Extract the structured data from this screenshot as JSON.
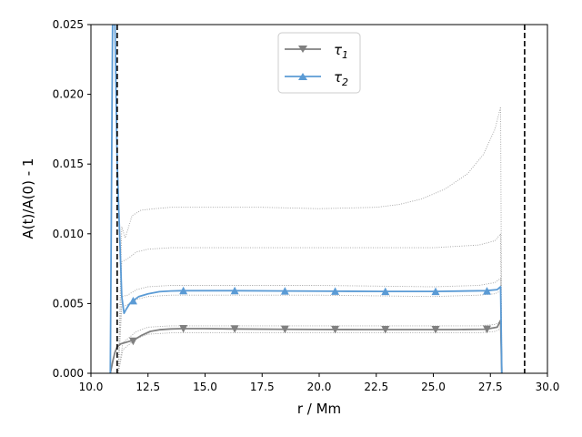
{
  "chart_data": {
    "type": "line",
    "xlabel": "r / Mm",
    "ylabel": "A(t)/A(0) - 1",
    "xlim": [
      10.0,
      30.0
    ],
    "ylim": [
      0.0,
      0.025
    ],
    "xticks": [
      "10.0",
      "12.5",
      "15.0",
      "17.5",
      "20.0",
      "22.5",
      "25.0",
      "27.5",
      "30.0"
    ],
    "yticks": [
      "0.000",
      "0.005",
      "0.010",
      "0.015",
      "0.020",
      "0.025"
    ],
    "grid": false,
    "legend_position": "top-center",
    "vertical_lines": [
      {
        "x": 11.15,
        "style": "dashed",
        "color": "#000000"
      },
      {
        "x": 29.0,
        "style": "dashed",
        "color": "#000000"
      }
    ],
    "series": [
      {
        "name": "τ1",
        "label_base": "τ",
        "label_sub": "1",
        "color": "#808080",
        "marker": "triangle-down",
        "x": [
          10.85,
          10.95,
          11.05,
          11.15,
          11.3,
          11.5,
          11.7,
          11.9,
          12.2,
          12.6,
          13.0,
          13.5,
          14.0,
          15.0,
          16.2,
          18.0,
          20.0,
          22.0,
          24.0,
          26.0,
          27.3,
          27.8,
          27.95,
          28.0
        ],
        "y": [
          0.0,
          0.0008,
          0.0015,
          0.0019,
          0.0021,
          0.0022,
          0.0023,
          0.0024,
          0.0027,
          0.003,
          0.00312,
          0.00318,
          0.0032,
          0.0032,
          0.00318,
          0.00316,
          0.00314,
          0.00313,
          0.00313,
          0.00313,
          0.00316,
          0.0033,
          0.0038,
          0.0
        ],
        "marker_x": [
          11.85,
          14.05,
          16.3,
          18.5,
          20.7,
          22.9,
          25.1,
          27.35
        ],
        "marker_y": [
          0.0023,
          0.0032,
          0.00318,
          0.00316,
          0.00314,
          0.00313,
          0.00313,
          0.00316
        ]
      },
      {
        "name": "τ2",
        "label_base": "τ",
        "label_sub": "2",
        "color": "#5b9bd5",
        "marker": "triangle-up",
        "x": [
          10.85,
          10.95,
          11.05,
          11.15,
          11.35,
          11.45,
          11.55,
          11.7,
          11.85,
          12.1,
          12.5,
          13.0,
          13.5,
          14.0,
          15.0,
          16.3,
          18.5,
          20.7,
          22.9,
          25.1,
          27.3,
          27.8,
          27.95,
          28.0
        ],
        "y": [
          0.0,
          0.025,
          0.025,
          0.015,
          0.0055,
          0.0043,
          0.0046,
          0.005,
          0.0052,
          0.0055,
          0.0057,
          0.00585,
          0.0059,
          0.00592,
          0.00592,
          0.00592,
          0.0059,
          0.00588,
          0.00587,
          0.00587,
          0.00592,
          0.006,
          0.0062,
          0.0
        ],
        "marker_x": [
          11.85,
          14.05,
          16.3,
          18.5,
          20.7,
          22.9,
          25.1,
          27.35
        ],
        "marker_y": [
          0.0052,
          0.00592,
          0.00592,
          0.0059,
          0.00588,
          0.00587,
          0.00587,
          0.0059
        ]
      }
    ],
    "reference_curves": [
      {
        "color": "#a0a0a0",
        "style": "dotted",
        "x": [
          11.2,
          11.35,
          11.5,
          11.8,
          12.2,
          12.8,
          13.5,
          15.0,
          17.5,
          20.0,
          22.5,
          23.5,
          24.5,
          25.5,
          26.5,
          27.2,
          27.7,
          27.95,
          28.0
        ],
        "y": [
          0.0,
          0.0105,
          0.0097,
          0.0113,
          0.0117,
          0.0118,
          0.0119,
          0.0119,
          0.0119,
          0.0118,
          0.0119,
          0.0121,
          0.0125,
          0.0132,
          0.0143,
          0.0157,
          0.0175,
          0.0191,
          0.0
        ]
      },
      {
        "color": "#a0a0a0",
        "style": "dotted",
        "x": [
          11.2,
          11.35,
          11.6,
          12.0,
          12.5,
          13.5,
          15.0,
          20.0,
          25.0,
          27.0,
          27.7,
          27.95,
          28.0
        ],
        "y": [
          0.0,
          0.008,
          0.0082,
          0.0087,
          0.0089,
          0.009,
          0.009,
          0.009,
          0.009,
          0.0092,
          0.0095,
          0.01,
          0.0
        ]
      },
      {
        "color": "#a0a0a0",
        "style": "dotted",
        "x": [
          11.2,
          11.35,
          11.6,
          12.0,
          12.5,
          13.5,
          15.0,
          20.0,
          25.0,
          27.0,
          27.7,
          27.95,
          28.0
        ],
        "y": [
          0.0,
          0.0055,
          0.0056,
          0.006,
          0.0062,
          0.0063,
          0.0063,
          0.0063,
          0.0062,
          0.0063,
          0.0065,
          0.0068,
          0.0
        ]
      },
      {
        "color": "#a0a0a0",
        "style": "dotted",
        "x": [
          11.2,
          11.35,
          11.6,
          12.0,
          12.5,
          13.5,
          15.0,
          20.0,
          25.0,
          27.0,
          27.7,
          27.95,
          28.0
        ],
        "y": [
          0.0,
          0.0048,
          0.0049,
          0.0053,
          0.0055,
          0.0056,
          0.0056,
          0.0056,
          0.0055,
          0.0056,
          0.0057,
          0.0059,
          0.0
        ]
      },
      {
        "color": "#a0a0a0",
        "style": "dotted",
        "x": [
          11.2,
          11.4,
          11.7,
          12.0,
          12.5,
          13.5,
          15.0,
          20.0,
          25.0,
          27.0,
          27.7,
          27.95,
          28.0
        ],
        "y": [
          0.0,
          0.0022,
          0.0026,
          0.003,
          0.0033,
          0.0034,
          0.0034,
          0.0034,
          0.0034,
          0.0034,
          0.0035,
          0.0037,
          0.0
        ]
      },
      {
        "color": "#a0a0a0",
        "style": "dotted",
        "x": [
          11.2,
          11.4,
          11.7,
          12.0,
          12.5,
          13.5,
          15.0,
          20.0,
          25.0,
          27.0,
          27.7,
          27.95,
          28.0
        ],
        "y": [
          0.0,
          0.0017,
          0.0021,
          0.0025,
          0.0028,
          0.0029,
          0.0029,
          0.0029,
          0.0029,
          0.0029,
          0.003,
          0.0032,
          0.0
        ]
      }
    ]
  }
}
